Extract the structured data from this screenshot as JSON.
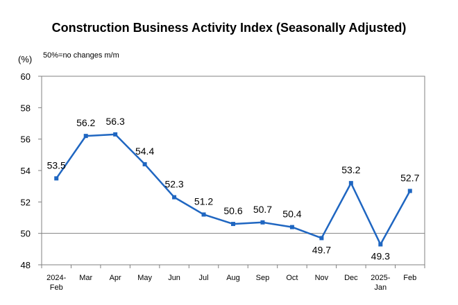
{
  "chart_data": {
    "type": "line",
    "title": "Construction Business Activity Index (Seasonally Adjusted)",
    "unit_label": "(%)",
    "note": "50%=no changes m/m",
    "categories": [
      [
        "2024-",
        "Feb"
      ],
      [
        "Mar"
      ],
      [
        "Apr"
      ],
      [
        "May"
      ],
      [
        "Jun"
      ],
      [
        "Jul"
      ],
      [
        "Aug"
      ],
      [
        "Sep"
      ],
      [
        "Oct"
      ],
      [
        "Nov"
      ],
      [
        "Dec"
      ],
      [
        "2025-",
        "Jan"
      ],
      [
        "Feb"
      ]
    ],
    "values": [
      53.5,
      56.2,
      56.3,
      54.4,
      52.3,
      51.2,
      50.6,
      50.7,
      50.4,
      49.7,
      53.2,
      49.3,
      52.7
    ],
    "label_position": [
      "above",
      "above",
      "above",
      "above",
      "above",
      "above",
      "above",
      "above",
      "above",
      "below",
      "above",
      "below",
      "above"
    ],
    "ylim": [
      48,
      60
    ],
    "yticks": [
      48,
      50,
      52,
      54,
      56,
      58,
      60
    ],
    "reference_line": 50,
    "line_color": "#1f66c1",
    "grid": false,
    "legend": "none"
  }
}
